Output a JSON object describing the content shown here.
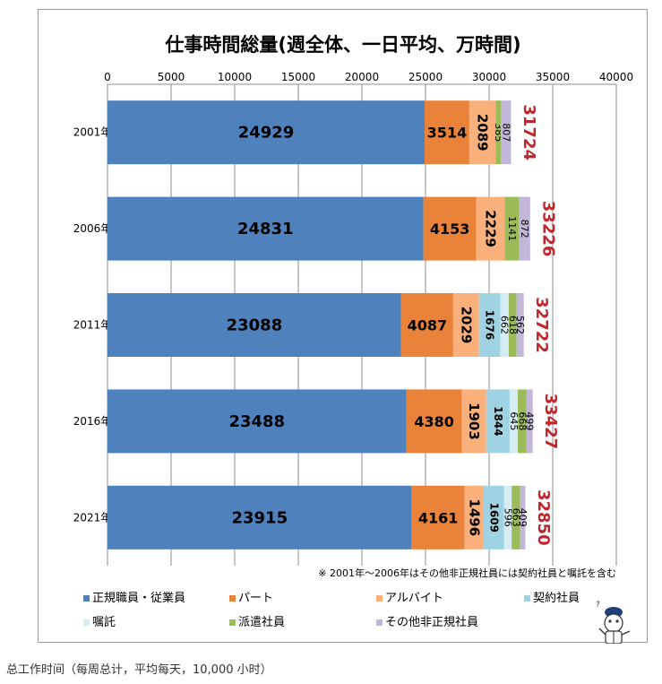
{
  "chart_data": {
    "type": "bar",
    "orientation": "horizontal",
    "stacked": true,
    "title": "仕事時間総量(週全体、一日平均、万時間)",
    "categories": [
      "2001年",
      "2006年",
      "2011年",
      "2016年",
      "2021年"
    ],
    "series": [
      {
        "name": "正規職員・従業員",
        "color": "#4f81bd",
        "values": [
          24929,
          24831,
          23088,
          23488,
          23915
        ]
      },
      {
        "name": "パート",
        "color": "#e9833a",
        "values": [
          3514,
          4153,
          4087,
          4380,
          4161
        ]
      },
      {
        "name": "アルバイト",
        "color": "#f9b07a",
        "values": [
          2089,
          2229,
          2029,
          1903,
          1496
        ]
      },
      {
        "name": "契約社員",
        "color": "#9fd3e3",
        "values": [
          null,
          null,
          1676,
          1844,
          1609
        ]
      },
      {
        "name": "嘱託",
        "color": "#d5ecf3",
        "values": [
          null,
          null,
          662,
          645,
          596
        ]
      },
      {
        "name": "派遣社員",
        "color": "#9bbb59",
        "values": [
          385,
          1141,
          618,
          668,
          663
        ]
      },
      {
        "name": "その他非正規社員",
        "color": "#c3b7d9",
        "values": [
          807,
          872,
          562,
          499,
          409
        ]
      }
    ],
    "totals": [
      31724,
      33226,
      32722,
      33427,
      32850
    ],
    "x_ticks": [
      "0",
      "5000",
      "10000",
      "15000",
      "20000",
      "25000",
      "30000",
      "35000",
      "40000"
    ],
    "xlim": [
      0,
      40000
    ],
    "grid": "vertical",
    "legend_position": "bottom",
    "footnote": "※ 2001年～2006年はその他非正規社員には契約社員と嘱託を含む",
    "total_color": "#c0262c"
  },
  "caption": "总工作时间（每周总计，平均每天，10,000 小时）"
}
